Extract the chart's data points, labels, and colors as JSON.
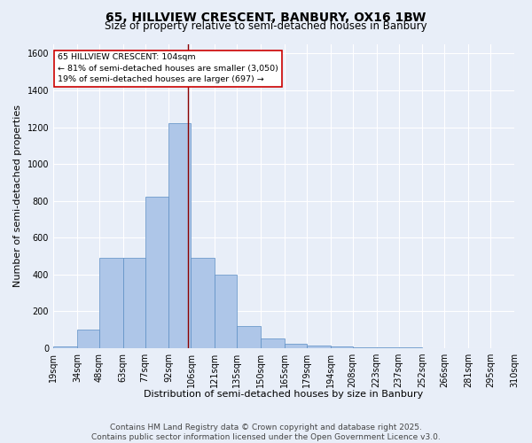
{
  "title1": "65, HILLVIEW CRESCENT, BANBURY, OX16 1BW",
  "title2": "Size of property relative to semi-detached houses in Banbury",
  "xlabel": "Distribution of semi-detached houses by size in Banbury",
  "ylabel": "Number of semi-detached properties",
  "bin_edges": [
    19,
    34,
    48,
    63,
    77,
    92,
    106,
    121,
    135,
    150,
    165,
    179,
    194,
    208,
    223,
    237,
    252,
    266,
    281,
    295,
    310
  ],
  "bar_heights": [
    10,
    100,
    490,
    490,
    820,
    1220,
    490,
    400,
    120,
    50,
    25,
    15,
    10,
    5,
    3,
    2,
    1,
    1,
    1,
    1
  ],
  "bin_labels": [
    "19sqm",
    "34sqm",
    "48sqm",
    "63sqm",
    "77sqm",
    "92sqm",
    "106sqm",
    "121sqm",
    "135sqm",
    "150sqm",
    "165sqm",
    "179sqm",
    "194sqm",
    "208sqm",
    "223sqm",
    "237sqm",
    "252sqm",
    "266sqm",
    "281sqm",
    "295sqm",
    "310sqm"
  ],
  "bar_color": "#aec6e8",
  "bar_edge_color": "#5b8ec4",
  "vline_x": 104,
  "vline_color": "#8b0000",
  "ylim": [
    0,
    1650
  ],
  "yticks": [
    0,
    200,
    400,
    600,
    800,
    1000,
    1200,
    1400,
    1600
  ],
  "annotation_title": "65 HILLVIEW CRESCENT: 104sqm",
  "annotation_line1": "← 81% of semi-detached houses are smaller (3,050)",
  "annotation_line2": "19% of semi-detached houses are larger (697) →",
  "annotation_box_color": "#ffffff",
  "annotation_box_edge": "#cc0000",
  "footnote1": "Contains HM Land Registry data © Crown copyright and database right 2025.",
  "footnote2": "Contains public sector information licensed under the Open Government Licence v3.0.",
  "bg_color": "#e8eef8",
  "grid_color": "#ffffff",
  "title1_fontsize": 10,
  "title2_fontsize": 8.5,
  "axis_label_fontsize": 8,
  "tick_fontsize": 7,
  "footnote_fontsize": 6.5,
  "annotation_fontsize": 6.8
}
